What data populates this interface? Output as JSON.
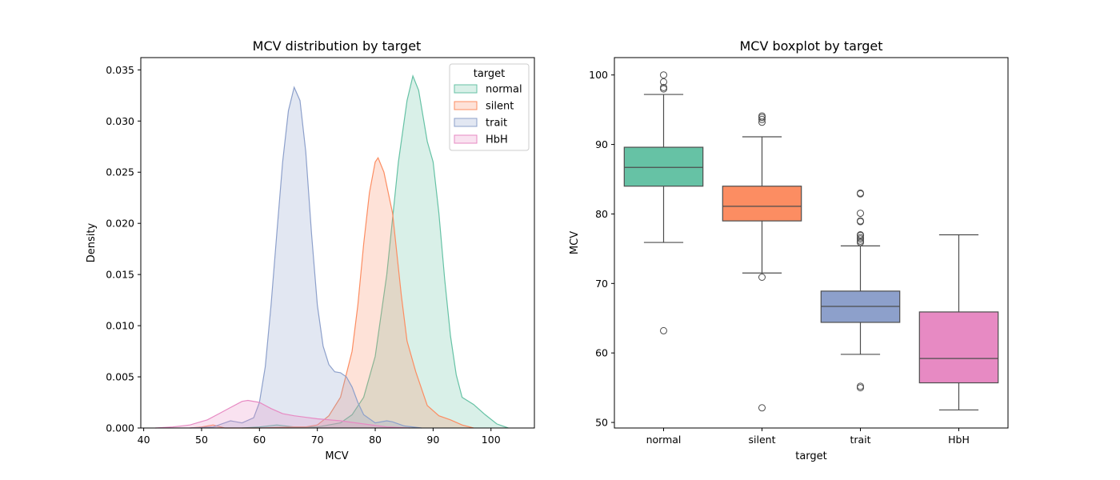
{
  "chart_data": [
    {
      "type": "area",
      "subtype": "kde",
      "title": "MCV distribution by target",
      "xlabel": "MCV",
      "ylabel": "Density",
      "xlim": [
        39.5,
        107.5
      ],
      "ylim": [
        0,
        0.0362
      ],
      "xticks": [
        40,
        50,
        60,
        70,
        80,
        90,
        100
      ],
      "yticks": [
        0.0,
        0.005,
        0.01,
        0.015,
        0.02,
        0.025,
        0.03,
        0.035
      ],
      "ytick_labels": [
        "0.000",
        "0.005",
        "0.010",
        "0.015",
        "0.020",
        "0.025",
        "0.030",
        "0.035"
      ],
      "grid": false,
      "legend": {
        "title": "target",
        "placement": "top-right"
      },
      "series": [
        {
          "name": "normal",
          "color": "#66c2a5",
          "points": [
            [
              57,
              0
            ],
            [
              60,
              0.0001
            ],
            [
              63,
              0.0003
            ],
            [
              66,
              0.0001
            ],
            [
              70,
              0.0001
            ],
            [
              74,
              0.0005
            ],
            [
              76,
              0.0013
            ],
            [
              78,
              0.003
            ],
            [
              80,
              0.007
            ],
            [
              82,
              0.015
            ],
            [
              84,
              0.026
            ],
            [
              85.5,
              0.032
            ],
            [
              86.5,
              0.0344
            ],
            [
              87.5,
              0.033
            ],
            [
              89,
              0.028
            ],
            [
              90,
              0.026
            ],
            [
              91,
              0.021
            ],
            [
              92,
              0.0145
            ],
            [
              93,
              0.009
            ],
            [
              94,
              0.0052
            ],
            [
              95,
              0.003
            ],
            [
              97,
              0.0023
            ],
            [
              99,
              0.0013
            ],
            [
              101,
              0.0004
            ],
            [
              103,
              0
            ]
          ]
        },
        {
          "name": "silent",
          "color": "#fc8d62",
          "points": [
            [
              48,
              0
            ],
            [
              50,
              0.0001
            ],
            [
              52,
              0.0003
            ],
            [
              54,
              0
            ],
            [
              60,
              0
            ],
            [
              66,
              0.0001
            ],
            [
              68,
              0.0001
            ],
            [
              70,
              0.0003
            ],
            [
              72,
              0.0012
            ],
            [
              74,
              0.003
            ],
            [
              76,
              0.0075
            ],
            [
              77,
              0.012
            ],
            [
              78,
              0.018
            ],
            [
              79,
              0.023
            ],
            [
              80,
              0.026
            ],
            [
              80.5,
              0.0264
            ],
            [
              81.5,
              0.025
            ],
            [
              83,
              0.021
            ],
            [
              84.5,
              0.013
            ],
            [
              85.5,
              0.0085
            ],
            [
              87,
              0.0055
            ],
            [
              89,
              0.0022
            ],
            [
              91,
              0.0012
            ],
            [
              93,
              0.0008
            ],
            [
              95,
              0.0003
            ],
            [
              97,
              0
            ]
          ]
        },
        {
          "name": "trait",
          "color": "#8da0cb",
          "points": [
            [
              48,
              0
            ],
            [
              52,
              0.0001
            ],
            [
              54,
              0.0005
            ],
            [
              55,
              0.0007
            ],
            [
              56,
              0.0006
            ],
            [
              57,
              0.0005
            ],
            [
              59,
              0.001
            ],
            [
              60,
              0.0025
            ],
            [
              61,
              0.006
            ],
            [
              62,
              0.012
            ],
            [
              63,
              0.019
            ],
            [
              64,
              0.026
            ],
            [
              65,
              0.031
            ],
            [
              66,
              0.0333
            ],
            [
              67,
              0.032
            ],
            [
              68,
              0.027
            ],
            [
              69,
              0.019
            ],
            [
              70,
              0.012
            ],
            [
              71,
              0.008
            ],
            [
              72,
              0.0062
            ],
            [
              73,
              0.0055
            ],
            [
              74,
              0.0054
            ],
            [
              75,
              0.005
            ],
            [
              76,
              0.004
            ],
            [
              77,
              0.0025
            ],
            [
              78,
              0.0013
            ],
            [
              80,
              0.0005
            ],
            [
              82,
              0.0007
            ],
            [
              83,
              0.0006
            ],
            [
              85,
              0.0002
            ],
            [
              88,
              0
            ]
          ]
        },
        {
          "name": "HbH",
          "color": "#e78ac3",
          "points": [
            [
              42,
              0
            ],
            [
              45,
              0.0001
            ],
            [
              48,
              0.0003
            ],
            [
              51,
              0.0008
            ],
            [
              53,
              0.0014
            ],
            [
              55,
              0.002
            ],
            [
              57,
              0.0026
            ],
            [
              58,
              0.0027
            ],
            [
              60,
              0.0025
            ],
            [
              62,
              0.0019
            ],
            [
              64,
              0.0014
            ],
            [
              66,
              0.0012
            ],
            [
              70,
              0.0009
            ],
            [
              74,
              0.0007
            ],
            [
              78,
              0.0004
            ],
            [
              82,
              0.0001
            ],
            [
              86,
              0
            ]
          ]
        }
      ]
    },
    {
      "type": "box",
      "title": "MCV boxplot by target",
      "xlabel": "target",
      "ylabel": "MCV",
      "ylim": [
        49.2,
        102.5
      ],
      "yticks": [
        50,
        60,
        70,
        80,
        90,
        100
      ],
      "categories": [
        "normal",
        "silent",
        "trait",
        "HbH"
      ],
      "grid": false,
      "boxes": [
        {
          "name": "normal",
          "color": "#66c2a5",
          "q1": 84.0,
          "median": 86.7,
          "q3": 89.6,
          "whisker_low": 75.9,
          "whisker_high": 97.2,
          "outliers": [
            63.2,
            98.0,
            98.2,
            99.0,
            100.0
          ]
        },
        {
          "name": "silent",
          "color": "#fc8d62",
          "q1": 79.0,
          "median": 81.1,
          "q3": 84.0,
          "whisker_low": 71.5,
          "whisker_high": 91.1,
          "outliers": [
            52.1,
            70.9,
            93.2,
            93.6,
            93.9,
            94.1
          ]
        },
        {
          "name": "trait",
          "color": "#8da0cb",
          "q1": 64.4,
          "median": 66.7,
          "q3": 68.9,
          "whisker_low": 59.8,
          "whisker_high": 75.4,
          "outliers": [
            55.0,
            55.2,
            75.9,
            76.1,
            76.4,
            76.6,
            76.9,
            77.0,
            78.9,
            79.0,
            80.1,
            82.9,
            83.0
          ]
        },
        {
          "name": "HbH",
          "color": "#e78ac3",
          "q1": 55.7,
          "median": 59.2,
          "q3": 65.9,
          "whisker_low": 51.8,
          "whisker_high": 77.0,
          "outliers": []
        }
      ]
    }
  ]
}
